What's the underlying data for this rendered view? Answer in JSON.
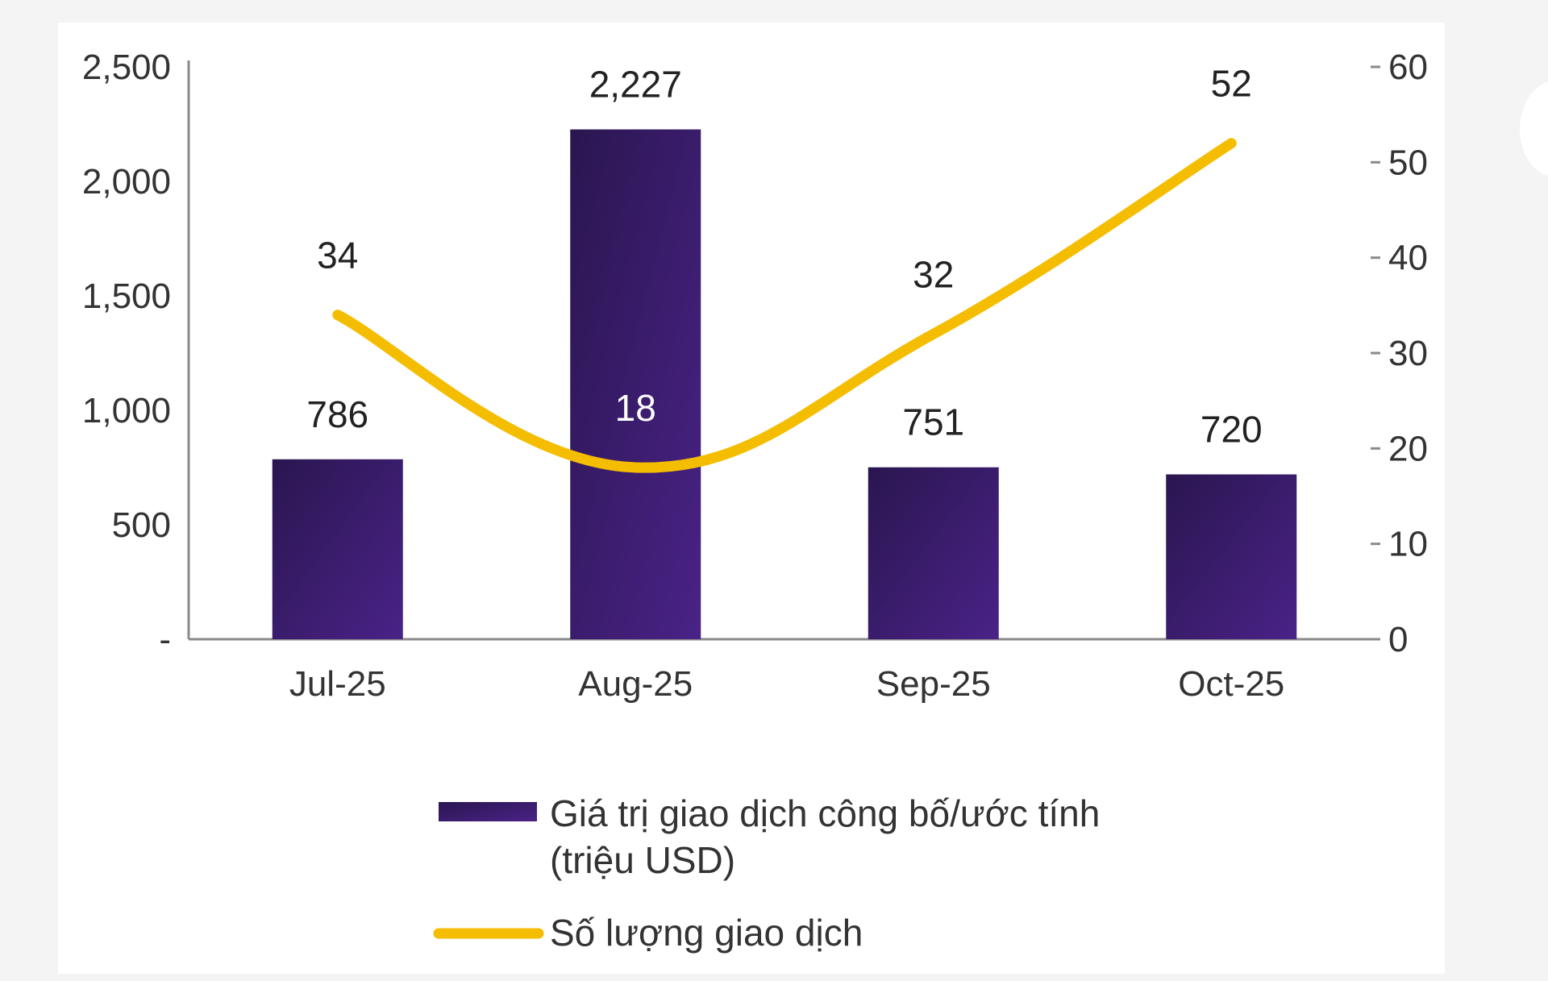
{
  "chart_data": {
    "type": "bar",
    "categories": [
      "Jul-25",
      "Aug-25",
      "Sep-25",
      "Oct-25"
    ],
    "series": [
      {
        "name": "Giá trị giao dịch công bố/ước tính (triệu USD)",
        "type": "bar",
        "axis": "left",
        "values": [
          786,
          2227,
          751,
          720
        ],
        "labels": [
          "786",
          "2,227",
          "751",
          "720"
        ],
        "color": "#3f1f6e"
      },
      {
        "name": "Số lượng giao dịch",
        "type": "line",
        "axis": "right",
        "values": [
          34,
          18,
          32,
          52
        ],
        "labels": [
          "34",
          "18",
          "32",
          "52"
        ],
        "color": "#f5bd00"
      }
    ],
    "y_left": {
      "lim": [
        0,
        2500
      ],
      "ticks": [
        0,
        500,
        1000,
        1500,
        2000,
        2500
      ],
      "tick_labels": [
        "-",
        "500",
        "1,000",
        "1,500",
        "2,000",
        "2,500"
      ]
    },
    "y_right": {
      "lim": [
        0,
        60
      ],
      "ticks": [
        0,
        10,
        20,
        30,
        40,
        50,
        60
      ],
      "tick_labels": [
        "0",
        "10",
        "20",
        "30",
        "40",
        "50",
        "60"
      ]
    },
    "legend": {
      "placement": "bottom",
      "bar_lines": [
        "Giá trị giao dịch công bố/ước tính",
        "(triệu USD)"
      ],
      "line_text": "Số lượng giao dịch"
    },
    "grid": false
  }
}
